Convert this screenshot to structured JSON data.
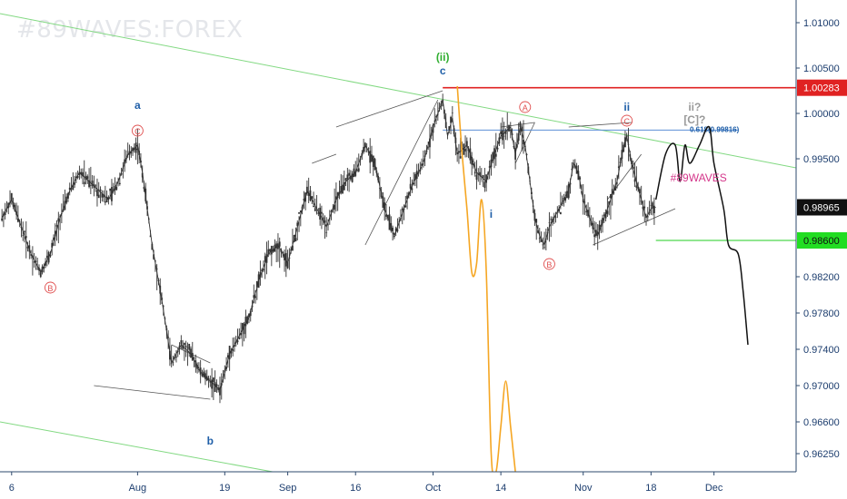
{
  "watermark": "#89WAVES:FOREX",
  "tag": "#89WAVES",
  "colors": {
    "candle": "#333333",
    "wave_blue": "#1f5fa8",
    "wave_red": "#e05050",
    "wave_green": "#2fae2f",
    "orange": "#f5a623",
    "trend_green": "#82d982",
    "resistance": "#e02222",
    "support": "#22cc22",
    "fib_line": "#5b8fd6",
    "tag_color": "#d4368a",
    "projection": "#111111",
    "grey": "#999999"
  },
  "chart_data": {
    "type": "line",
    "title": "",
    "xlabel": "",
    "ylabel": "",
    "ylim": [
      0.9605,
      1.0125
    ],
    "y_ticks": [
      "1.01000",
      "1.00500",
      "1.00000",
      "0.99500",
      "0.98200",
      "0.97800",
      "0.97400",
      "0.97000",
      "0.96600",
      "0.96250"
    ],
    "y_tick_values": [
      1.01,
      1.005,
      1.0,
      0.995,
      0.982,
      0.978,
      0.974,
      0.97,
      0.966,
      0.9625
    ],
    "x_ticks": [
      "6",
      "Aug",
      "19",
      "Sep",
      "16",
      "Oct",
      "14",
      "Nov",
      "18",
      "Dec"
    ],
    "x_tick_days": [
      6,
      32,
      50,
      63,
      77,
      93,
      107,
      124,
      138,
      151
    ],
    "price_labels": [
      {
        "text": "1.00283",
        "value": 1.00283,
        "style": "resistance"
      },
      {
        "text": "0.98965",
        "value": 0.98965,
        "style": "current"
      },
      {
        "text": "0.98600",
        "value": 0.986,
        "style": "support"
      }
    ],
    "fib_label": "0.618(0.99816)",
    "fib_value": 0.99816,
    "price_series": [
      {
        "day": 4,
        "value": 0.9885
      },
      {
        "day": 6,
        "value": 0.9905
      },
      {
        "day": 8,
        "value": 0.9875
      },
      {
        "day": 10,
        "value": 0.9845
      },
      {
        "day": 12,
        "value": 0.9825
      },
      {
        "day": 14,
        "value": 0.9845
      },
      {
        "day": 16,
        "value": 0.9885
      },
      {
        "day": 18,
        "value": 0.9915
      },
      {
        "day": 20,
        "value": 0.9935
      },
      {
        "day": 22,
        "value": 0.9925
      },
      {
        "day": 24,
        "value": 0.9915
      },
      {
        "day": 26,
        "value": 0.9905
      },
      {
        "day": 28,
        "value": 0.9925
      },
      {
        "day": 30,
        "value": 0.9955
      },
      {
        "day": 32,
        "value": 0.9965
      },
      {
        "day": 33,
        "value": 0.9935
      },
      {
        "day": 35,
        "value": 0.9855
      },
      {
        "day": 37,
        "value": 0.9795
      },
      {
        "day": 39,
        "value": 0.9725
      },
      {
        "day": 41,
        "value": 0.9745
      },
      {
        "day": 43,
        "value": 0.9735
      },
      {
        "day": 45,
        "value": 0.9715
      },
      {
        "day": 47,
        "value": 0.9705
      },
      {
        "day": 49,
        "value": 0.9695
      },
      {
        "day": 51,
        "value": 0.9735
      },
      {
        "day": 53,
        "value": 0.9755
      },
      {
        "day": 55,
        "value": 0.9775
      },
      {
        "day": 57,
        "value": 0.9815
      },
      {
        "day": 59,
        "value": 0.9845
      },
      {
        "day": 61,
        "value": 0.9855
      },
      {
        "day": 63,
        "value": 0.9835
      },
      {
        "day": 65,
        "value": 0.9875
      },
      {
        "day": 67,
        "value": 0.9915
      },
      {
        "day": 69,
        "value": 0.9895
      },
      {
        "day": 71,
        "value": 0.9875
      },
      {
        "day": 73,
        "value": 0.9905
      },
      {
        "day": 75,
        "value": 0.9925
      },
      {
        "day": 77,
        "value": 0.9935
      },
      {
        "day": 79,
        "value": 0.9965
      },
      {
        "day": 81,
        "value": 0.9945
      },
      {
        "day": 83,
        "value": 0.9895
      },
      {
        "day": 85,
        "value": 0.9865
      },
      {
        "day": 87,
        "value": 0.9895
      },
      {
        "day": 89,
        "value": 0.9925
      },
      {
        "day": 91,
        "value": 0.9945
      },
      {
        "day": 93,
        "value": 0.9985
      },
      {
        "day": 95,
        "value": 1.0015
      },
      {
        "day": 96,
        "value": 0.9975
      },
      {
        "day": 97,
        "value": 0.9995
      },
      {
        "day": 98,
        "value": 0.9955
      },
      {
        "day": 100,
        "value": 0.9965
      },
      {
        "day": 102,
        "value": 0.9935
      },
      {
        "day": 104,
        "value": 0.9925
      },
      {
        "day": 105,
        "value": 0.9945
      },
      {
        "day": 107,
        "value": 0.9975
      },
      {
        "day": 109,
        "value": 0.9985
      },
      {
        "day": 110,
        "value": 0.9955
      },
      {
        "day": 111,
        "value": 0.9985
      },
      {
        "day": 112,
        "value": 0.9965
      },
      {
        "day": 113,
        "value": 0.9925
      },
      {
        "day": 114,
        "value": 0.9885
      },
      {
        "day": 115,
        "value": 0.9865
      },
      {
        "day": 116,
        "value": 0.9855
      },
      {
        "day": 117,
        "value": 0.9875
      },
      {
        "day": 119,
        "value": 0.9895
      },
      {
        "day": 121,
        "value": 0.9915
      },
      {
        "day": 122,
        "value": 0.9945
      },
      {
        "day": 123,
        "value": 0.9935
      },
      {
        "day": 124,
        "value": 0.9905
      },
      {
        "day": 126,
        "value": 0.9875
      },
      {
        "day": 127,
        "value": 0.9865
      },
      {
        "day": 129,
        "value": 0.9895
      },
      {
        "day": 131,
        "value": 0.9925
      },
      {
        "day": 132,
        "value": 0.9955
      },
      {
        "day": 133,
        "value": 0.9975
      },
      {
        "day": 134,
        "value": 0.9945
      },
      {
        "day": 135,
        "value": 0.9925
      },
      {
        "day": 136,
        "value": 0.9905
      },
      {
        "day": 137,
        "value": 0.9885
      },
      {
        "day": 138,
        "value": 0.9895
      },
      {
        "day": 139,
        "value": 0.98965
      }
    ],
    "projection_series": [
      {
        "day": 139,
        "value": 0.9905
      },
      {
        "day": 141,
        "value": 0.9955
      },
      {
        "day": 143,
        "value": 0.9965
      },
      {
        "day": 144,
        "value": 0.9925
      },
      {
        "day": 145,
        "value": 0.9965
      },
      {
        "day": 146,
        "value": 0.9945
      },
      {
        "day": 148,
        "value": 0.9965
      },
      {
        "day": 150,
        "value": 0.9985
      },
      {
        "day": 151,
        "value": 0.9945
      },
      {
        "day": 153,
        "value": 0.9895
      },
      {
        "day": 154,
        "value": 0.9855
      },
      {
        "day": 156,
        "value": 0.9845
      },
      {
        "day": 157,
        "value": 0.9805
      },
      {
        "day": 158,
        "value": 0.9745
      }
    ],
    "alt_projection_series": [
      {
        "day": 98,
        "value": 1.003
      },
      {
        "day": 99,
        "value": 0.9955
      },
      {
        "day": 100,
        "value": 0.9895
      },
      {
        "day": 101,
        "value": 0.9825
      },
      {
        "day": 102,
        "value": 0.9835
      },
      {
        "day": 103,
        "value": 0.9905
      },
      {
        "day": 104,
        "value": 0.9825
      },
      {
        "day": 105,
        "value": 0.9625
      },
      {
        "day": 106,
        "value": 0.9605
      },
      {
        "day": 107,
        "value": 0.9655
      },
      {
        "day": 108,
        "value": 0.9705
      },
      {
        "day": 109,
        "value": 0.9655
      },
      {
        "day": 110,
        "value": 0.9605
      }
    ],
    "wave_labels": [
      {
        "text": "a",
        "day": 32,
        "value": 1.0005,
        "color": "wave_blue"
      },
      {
        "text": "C",
        "day": 32,
        "value": 0.9977,
        "color": "wave_red",
        "circled": true
      },
      {
        "text": "B",
        "day": 14,
        "value": 0.9804,
        "color": "wave_red",
        "circled": true
      },
      {
        "text": "b",
        "day": 47,
        "value": 0.9635,
        "color": "wave_blue"
      },
      {
        "text": "(ii)",
        "day": 95,
        "value": 1.0058,
        "color": "wave_green"
      },
      {
        "text": "c",
        "day": 95,
        "value": 1.0043,
        "color": "wave_blue"
      },
      {
        "text": "A",
        "day": 112,
        "value": 1.0003,
        "color": "wave_red",
        "circled": true
      },
      {
        "text": "i",
        "day": 105,
        "value": 0.9885,
        "color": "wave_blue"
      },
      {
        "text": "B",
        "day": 117,
        "value": 0.983,
        "color": "wave_red",
        "circled": true
      },
      {
        "text": "ii",
        "day": 133,
        "value": 1.0003,
        "color": "wave_blue"
      },
      {
        "text": "C",
        "day": 133,
        "value": 0.9988,
        "color": "wave_red",
        "circled": true
      },
      {
        "text": "ii?",
        "day": 147,
        "value": 1.0003,
        "color": "grey"
      },
      {
        "text": "[C]?",
        "day": 147,
        "value": 0.9989,
        "color": "grey"
      }
    ]
  }
}
